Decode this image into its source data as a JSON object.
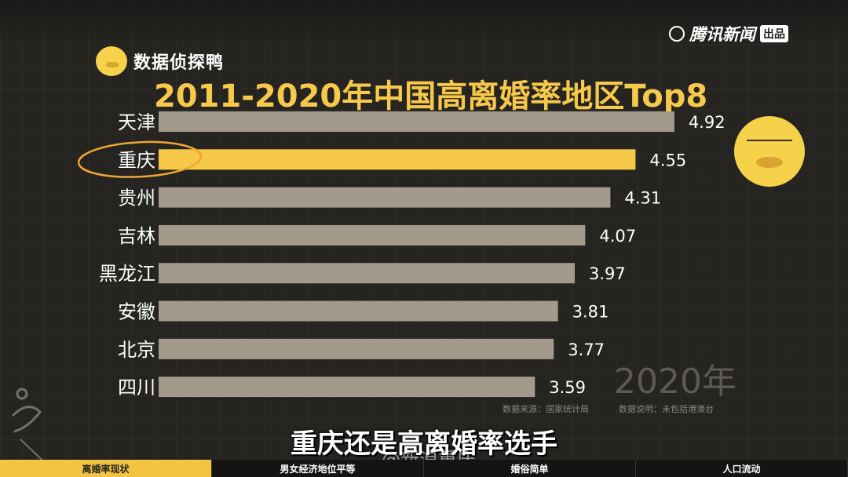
{
  "brand": {
    "label": "数据侦探鸭"
  },
  "publisher": {
    "label": "腾讯新闻",
    "badge": "出品"
  },
  "chart_data": {
    "type": "bar",
    "orientation": "horizontal",
    "title": "2011-2020年中国高离婚率地区Top8",
    "categories": [
      "天津",
      "重庆",
      "贵州",
      "吉林",
      "黑龙江",
      "安徽",
      "北京",
      "四川"
    ],
    "values": [
      4.92,
      4.55,
      4.31,
      4.07,
      3.97,
      3.81,
      3.77,
      3.59
    ],
    "value_labels": [
      "4.92",
      "4.55",
      "4.31",
      "4.07",
      "3.97",
      "3.81",
      "3.77",
      "3.59"
    ],
    "highlight_category": "重庆",
    "colors": {
      "bar": "#a49a8c",
      "highlight": "#f7c94a",
      "category_text": "#ffffff",
      "value_text": "#ffffff",
      "circle": "#f0a734"
    },
    "grid": true
  },
  "year_badge": "2020年",
  "source_note": "数据来源：国家统计局",
  "source_desc": "数据说明：未包括港澳台",
  "caption": "重庆还是高离婚率选手",
  "watermark": {
    "weibo": "@新浪重庆"
  },
  "bottom_nav": [
    "离婚率现状",
    "男女经济地位平等",
    "婚俗简单",
    "人口流动"
  ]
}
